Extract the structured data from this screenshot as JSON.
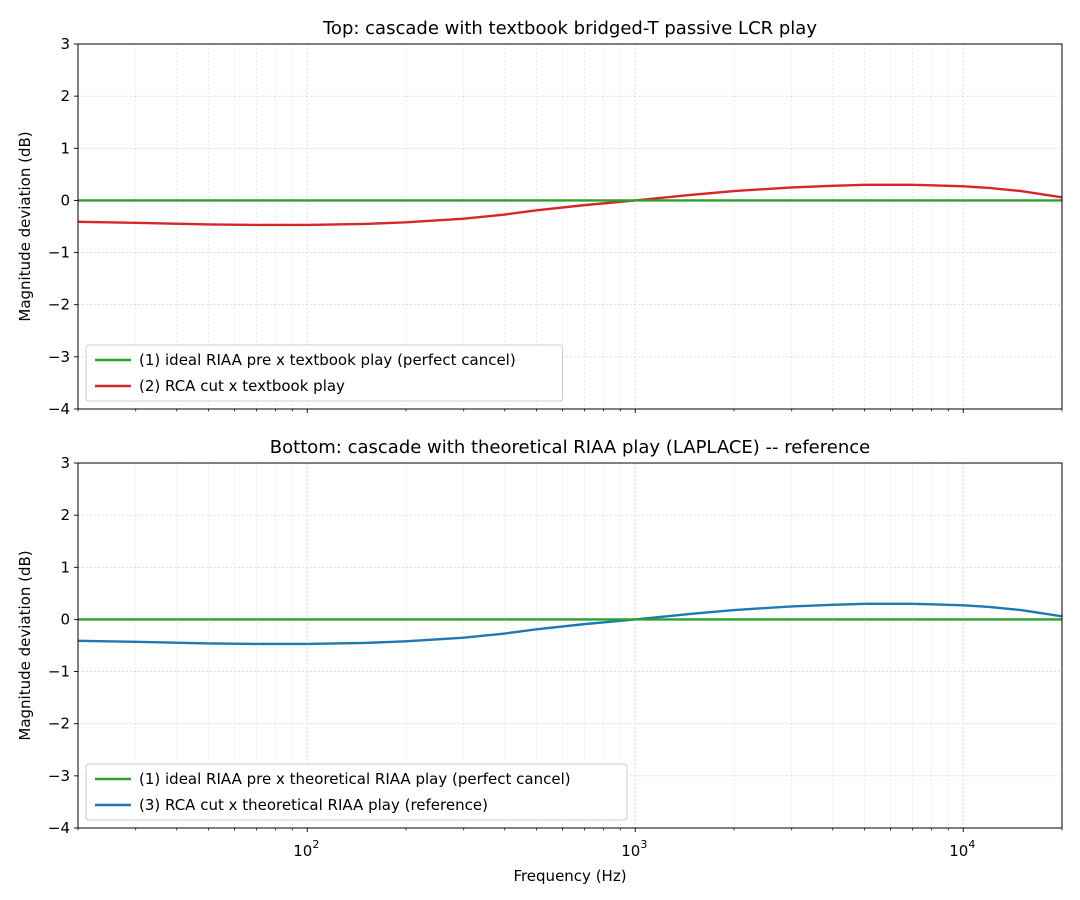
{
  "chart_data": [
    {
      "type": "line",
      "title": "Top: cascade with textbook bridged-T passive LCR play",
      "xlabel": "",
      "ylabel": "Magnitude deviation (dB)",
      "xscale": "log",
      "xlim": [
        20,
        20000
      ],
      "ylim": [
        -4,
        3
      ],
      "yticks": [
        "−4",
        "−3",
        "−2",
        "−1",
        "0",
        "1",
        "2",
        "3"
      ],
      "xticks": [
        {
          "base": "10",
          "exp": "2"
        },
        {
          "base": "10",
          "exp": "3"
        },
        {
          "base": "10",
          "exp": "4"
        }
      ],
      "grid": true,
      "legend_position": "lower-left",
      "series": [
        {
          "name": "(1) ideal RIAA pre x textbook play (perfect cancel)",
          "color": "#2ca02c",
          "x": [
            20,
            20000
          ],
          "y": [
            0,
            0
          ]
        },
        {
          "name": "(2) RCA cut x textbook play",
          "color": "#d62728",
          "x": [
            20,
            30,
            50,
            70,
            100,
            150,
            200,
            300,
            400,
            500,
            700,
            1000,
            1500,
            2000,
            3000,
            4000,
            5000,
            6000,
            7000,
            8000,
            10000,
            12000,
            15000,
            20000
          ],
          "y": [
            -0.41,
            -0.43,
            -0.46,
            -0.47,
            -0.47,
            -0.45,
            -0.42,
            -0.35,
            -0.27,
            -0.19,
            -0.09,
            0.0,
            0.11,
            0.18,
            0.25,
            0.28,
            0.3,
            0.3,
            0.3,
            0.29,
            0.27,
            0.24,
            0.18,
            0.06
          ]
        }
      ]
    },
    {
      "type": "line",
      "title": "Bottom: cascade with theoretical RIAA play (LAPLACE) -- reference",
      "xlabel": "Frequency (Hz)",
      "ylabel": "Magnitude deviation (dB)",
      "xscale": "log",
      "xlim": [
        20,
        20000
      ],
      "ylim": [
        -4,
        3
      ],
      "yticks": [
        "−4",
        "−3",
        "−2",
        "−1",
        "0",
        "1",
        "2",
        "3"
      ],
      "xticks": [
        {
          "base": "10",
          "exp": "2"
        },
        {
          "base": "10",
          "exp": "3"
        },
        {
          "base": "10",
          "exp": "4"
        }
      ],
      "grid": true,
      "legend_position": "lower-left",
      "series": [
        {
          "name": "(1) ideal RIAA pre x theoretical RIAA play (perfect cancel)",
          "color": "#2ca02c",
          "x": [
            20,
            20000
          ],
          "y": [
            0,
            0
          ]
        },
        {
          "name": "(3) RCA cut x theoretical RIAA play (reference)",
          "color": "#1f77b4",
          "x": [
            20,
            30,
            50,
            70,
            100,
            150,
            200,
            300,
            400,
            500,
            700,
            1000,
            1500,
            2000,
            3000,
            4000,
            5000,
            6000,
            7000,
            8000,
            10000,
            12000,
            15000,
            20000
          ],
          "y": [
            -0.41,
            -0.43,
            -0.46,
            -0.47,
            -0.47,
            -0.45,
            -0.42,
            -0.35,
            -0.27,
            -0.19,
            -0.09,
            0.0,
            0.11,
            0.18,
            0.25,
            0.28,
            0.3,
            0.3,
            0.3,
            0.29,
            0.27,
            0.24,
            0.18,
            0.06
          ]
        }
      ]
    }
  ]
}
